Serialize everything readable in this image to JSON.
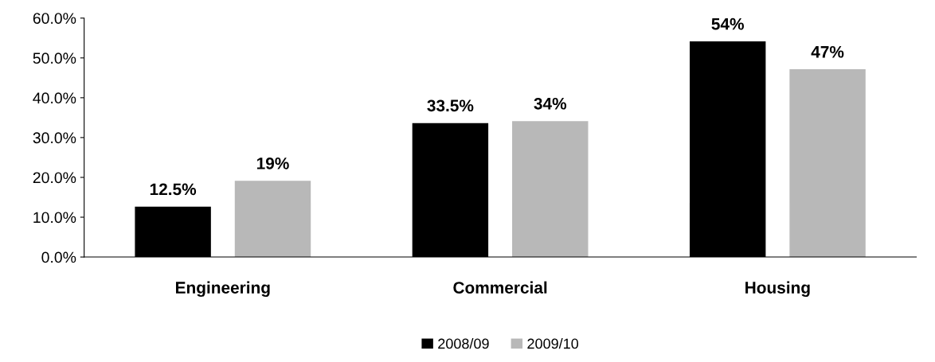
{
  "chart_data": {
    "type": "bar",
    "categories": [
      "Engineering",
      "Commercial",
      "Housing"
    ],
    "series": [
      {
        "name": "2008/09",
        "color": "#000000",
        "values": [
          12.5,
          33.5,
          54
        ],
        "value_labels": [
          "12.5%",
          "33.5%",
          "54%"
        ]
      },
      {
        "name": "2009/10",
        "color": "#b8b8b8",
        "values": [
          19,
          34,
          47
        ],
        "value_labels": [
          "19%",
          "34%",
          "47%"
        ]
      }
    ],
    "ylim": [
      0,
      60
    ],
    "yticks": [
      {
        "value": 0,
        "label": "0.0%"
      },
      {
        "value": 10,
        "label": "10.0%"
      },
      {
        "value": 20,
        "label": "20.0%"
      },
      {
        "value": 30,
        "label": "30.0%"
      },
      {
        "value": 40,
        "label": "40.0%"
      },
      {
        "value": 50,
        "label": "50.0%"
      },
      {
        "value": 60,
        "label": "60.0%"
      }
    ],
    "grid": false,
    "legend": "bottom"
  }
}
